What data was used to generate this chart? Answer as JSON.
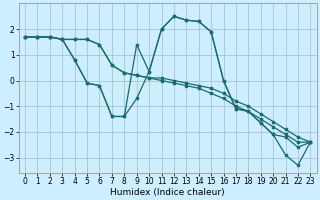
{
  "xlabel": "Humidex (Indice chaleur)",
  "background_color": "#cceeff",
  "grid_color": "#aacccc",
  "line_color": "#1a6b6b",
  "xlim": [
    -0.5,
    23.5
  ],
  "ylim": [
    -3.6,
    3.0
  ],
  "yticks": [
    -3,
    -2,
    -1,
    0,
    1,
    2
  ],
  "xticks": [
    0,
    1,
    2,
    3,
    4,
    5,
    6,
    7,
    8,
    9,
    10,
    11,
    12,
    13,
    14,
    15,
    16,
    17,
    18,
    19,
    20,
    21,
    22,
    23
  ],
  "series": [
    [
      1.7,
      1.7,
      1.7,
      1.6,
      0.8,
      -0.1,
      -0.2,
      -1.4,
      -1.4,
      -0.7,
      0.35,
      2.0,
      2.5,
      2.35,
      2.3,
      1.9,
      0.0,
      -1.1,
      -1.2,
      -1.65,
      -2.1,
      -2.2,
      -2.6,
      -2.4
    ],
    [
      1.7,
      1.7,
      1.7,
      1.6,
      0.8,
      -0.1,
      -0.2,
      -1.4,
      -1.4,
      1.4,
      0.35,
      2.0,
      2.5,
      2.35,
      2.3,
      1.9,
      0.0,
      -1.1,
      -1.2,
      -1.65,
      -2.1,
      -2.9,
      -3.3,
      -2.4
    ],
    [
      1.7,
      1.7,
      1.7,
      1.6,
      1.6,
      1.6,
      1.4,
      0.6,
      0.3,
      0.2,
      0.1,
      0.1,
      0.0,
      -0.1,
      -0.2,
      -0.3,
      -0.5,
      -0.8,
      -1.0,
      -1.3,
      -1.6,
      -1.9,
      -2.2,
      -2.4
    ],
    [
      1.7,
      1.7,
      1.7,
      1.6,
      1.6,
      1.6,
      1.4,
      0.6,
      0.3,
      0.2,
      0.1,
      0.0,
      -0.1,
      -0.2,
      -0.3,
      -0.5,
      -0.7,
      -1.0,
      -1.2,
      -1.5,
      -1.8,
      -2.1,
      -2.4,
      -2.4
    ]
  ]
}
